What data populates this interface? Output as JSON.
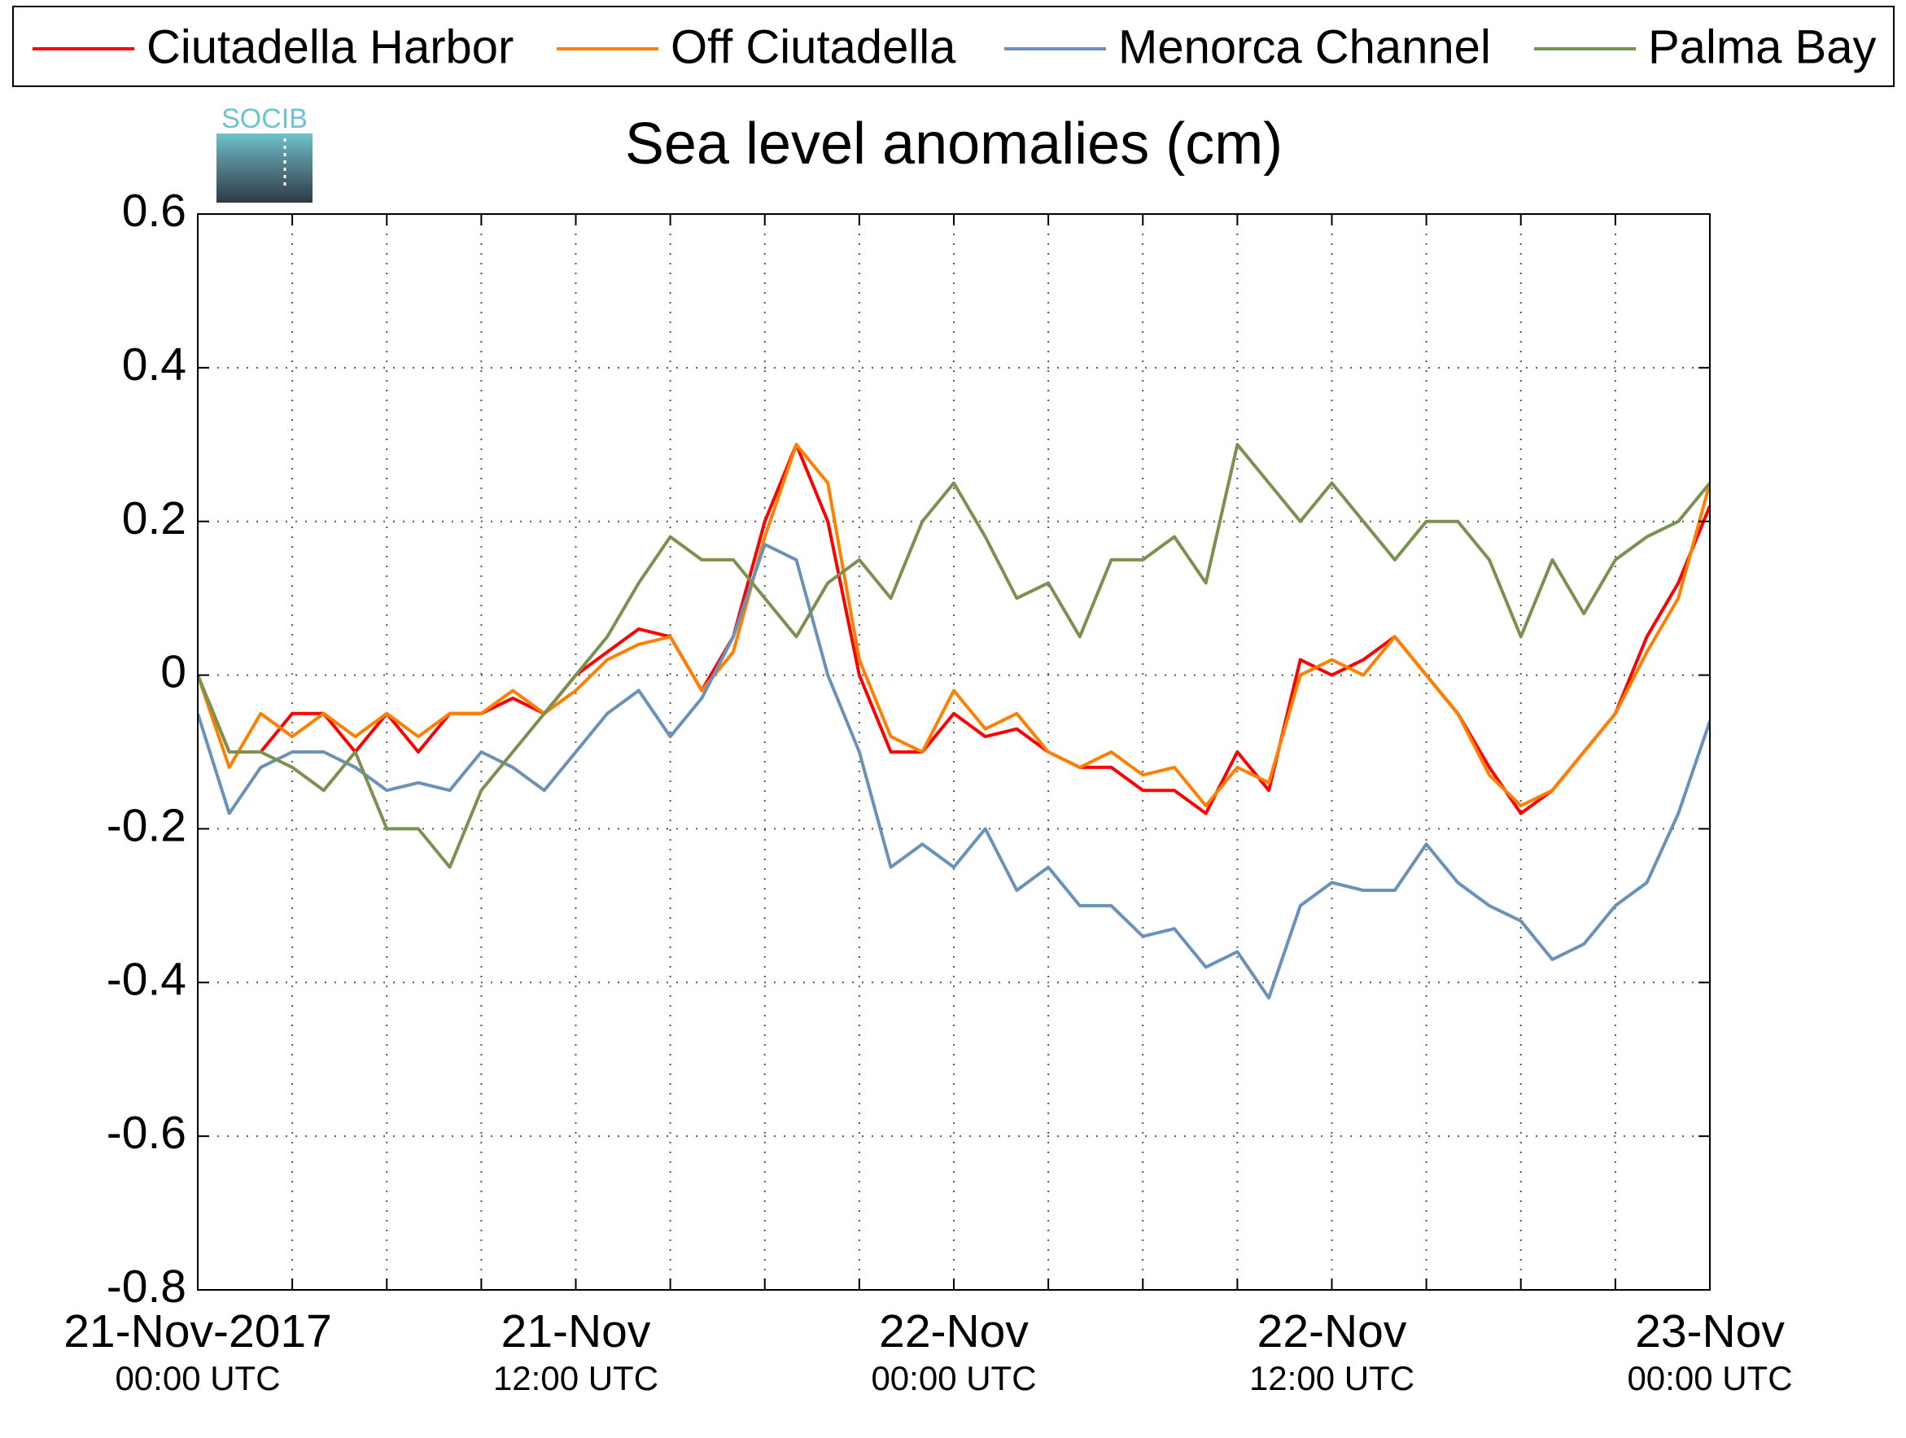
{
  "chart_data": {
    "type": "line",
    "title": "Sea level anomalies (cm)",
    "logo_text": "SOCIB",
    "legend": "top",
    "grid": true,
    "x": [
      "2017-11-21T00:00",
      "2017-11-21T01:00",
      "2017-11-21T02:00",
      "2017-11-21T03:00",
      "2017-11-21T04:00",
      "2017-11-21T05:00",
      "2017-11-21T06:00",
      "2017-11-21T07:00",
      "2017-11-21T08:00",
      "2017-11-21T09:00",
      "2017-11-21T10:00",
      "2017-11-21T11:00",
      "2017-11-21T12:00",
      "2017-11-21T13:00",
      "2017-11-21T14:00",
      "2017-11-21T15:00",
      "2017-11-21T16:00",
      "2017-11-21T17:00",
      "2017-11-21T18:00",
      "2017-11-21T19:00",
      "2017-11-21T20:00",
      "2017-11-21T21:00",
      "2017-11-21T22:00",
      "2017-11-21T23:00",
      "2017-11-22T00:00",
      "2017-11-22T01:00",
      "2017-11-22T02:00",
      "2017-11-22T03:00",
      "2017-11-22T04:00",
      "2017-11-22T05:00",
      "2017-11-22T06:00",
      "2017-11-22T07:00",
      "2017-11-22T08:00",
      "2017-11-22T09:00",
      "2017-11-22T10:00",
      "2017-11-22T11:00",
      "2017-11-22T12:00",
      "2017-11-22T13:00",
      "2017-11-22T14:00",
      "2017-11-22T15:00",
      "2017-11-22T16:00",
      "2017-11-22T17:00",
      "2017-11-22T18:00",
      "2017-11-22T19:00",
      "2017-11-22T20:00",
      "2017-11-22T21:00",
      "2017-11-22T22:00",
      "2017-11-22T23:00",
      "2017-11-23T00:00"
    ],
    "series": [
      {
        "name": "Ciutadella Harbor",
        "color": "#ff0000",
        "values": [
          0,
          -0.1,
          -0.1,
          -0.05,
          -0.05,
          -0.1,
          -0.05,
          -0.1,
          -0.05,
          -0.05,
          -0.03,
          -0.05,
          0,
          0.03,
          0.06,
          0.05,
          -0.02,
          0.05,
          0.2,
          0.3,
          0.2,
          0,
          -0.1,
          -0.1,
          -0.05,
          -0.08,
          -0.07,
          -0.1,
          -0.12,
          -0.12,
          -0.15,
          -0.15,
          -0.18,
          -0.1,
          -0.15,
          0.02,
          0,
          0.02,
          0.05,
          0,
          -0.05,
          -0.12,
          -0.18,
          -0.15,
          -0.1,
          -0.05,
          0.05,
          0.12,
          0.22
        ]
      },
      {
        "name": "Off Ciutadella",
        "color": "#ff8000",
        "values": [
          0,
          -0.12,
          -0.05,
          -0.08,
          -0.05,
          -0.08,
          -0.05,
          -0.08,
          -0.05,
          -0.05,
          -0.02,
          -0.05,
          -0.02,
          0.02,
          0.04,
          0.05,
          -0.02,
          0.03,
          0.18,
          0.3,
          0.25,
          0.02,
          -0.08,
          -0.1,
          -0.02,
          -0.07,
          -0.05,
          -0.1,
          -0.12,
          -0.1,
          -0.13,
          -0.12,
          -0.17,
          -0.12,
          -0.14,
          0,
          0.02,
          0,
          0.05,
          0,
          -0.05,
          -0.13,
          -0.17,
          -0.15,
          -0.1,
          -0.05,
          0.03,
          0.1,
          0.25
        ]
      },
      {
        "name": "Menorca Channel",
        "color": "#6a92b8",
        "values": [
          -0.05,
          -0.18,
          -0.12,
          -0.1,
          -0.1,
          -0.12,
          -0.15,
          -0.14,
          -0.15,
          -0.1,
          -0.12,
          -0.15,
          -0.1,
          -0.05,
          -0.02,
          -0.08,
          -0.03,
          0.05,
          0.17,
          0.15,
          0,
          -0.1,
          -0.25,
          -0.22,
          -0.25,
          -0.2,
          -0.28,
          -0.25,
          -0.3,
          -0.3,
          -0.34,
          -0.33,
          -0.38,
          -0.36,
          -0.42,
          -0.3,
          -0.27,
          -0.28,
          -0.28,
          -0.22,
          -0.27,
          -0.3,
          -0.32,
          -0.37,
          -0.35,
          -0.3,
          -0.27,
          -0.18,
          -0.06
        ]
      },
      {
        "name": "Palma Bay",
        "color": "#7a9150",
        "values": [
          0,
          -0.1,
          -0.1,
          -0.12,
          -0.15,
          -0.1,
          -0.2,
          -0.2,
          -0.25,
          -0.15,
          -0.1,
          -0.05,
          0,
          0.05,
          0.12,
          0.18,
          0.15,
          0.15,
          0.1,
          0.05,
          0.12,
          0.15,
          0.1,
          0.2,
          0.25,
          0.18,
          0.1,
          0.12,
          0.05,
          0.15,
          0.15,
          0.18,
          0.12,
          0.3,
          0.25,
          0.2,
          0.25,
          0.2,
          0.15,
          0.2,
          0.2,
          0.15,
          0.05,
          0.15,
          0.08,
          0.15,
          0.18,
          0.2,
          0.25
        ]
      }
    ],
    "xlim": [
      "2017-11-21T00:00",
      "2017-11-23T00:00"
    ],
    "xticks": [
      {
        "value": "2017-11-21T00:00",
        "label": [
          "21-Nov-2017",
          "00:00 UTC"
        ]
      },
      {
        "value": "2017-11-21T12:00",
        "label": [
          "21-Nov",
          "12:00 UTC"
        ]
      },
      {
        "value": "2017-11-22T00:00",
        "label": [
          "22-Nov",
          "00:00 UTC"
        ]
      },
      {
        "value": "2017-11-22T12:00",
        "label": [
          "22-Nov",
          "12:00 UTC"
        ]
      },
      {
        "value": "2017-11-23T00:00",
        "label": [
          "23-Nov",
          "00:00 UTC"
        ]
      }
    ],
    "xminorticks": [
      "2017-11-21T03:00",
      "2017-11-21T06:00",
      "2017-11-21T09:00",
      "2017-11-21T15:00",
      "2017-11-21T18:00",
      "2017-11-21T21:00",
      "2017-11-22T03:00",
      "2017-11-22T06:00",
      "2017-11-22T09:00",
      "2017-11-22T15:00",
      "2017-11-22T18:00",
      "2017-11-22T21:00"
    ],
    "ylim": [
      -0.8,
      0.6
    ],
    "yticks": [
      -0.8,
      -0.6,
      -0.4,
      -0.2,
      0,
      0.2,
      0.4,
      0.6
    ]
  }
}
